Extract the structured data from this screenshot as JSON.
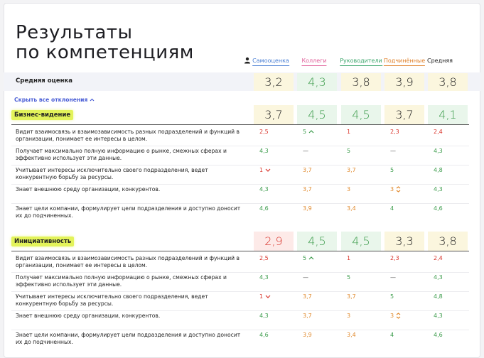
{
  "title": [
    "Результаты",
    "по компетенциям"
  ],
  "columns": [
    "Самооценка",
    "Коллеги",
    "Руководители",
    "Подчинённые",
    "Средняя"
  ],
  "average": {
    "label": "Средняя оценка",
    "values": [
      "3,2",
      "4,3",
      "3,8",
      "3,9",
      "3,8"
    ]
  },
  "toggle": "Скрыть все отклонения",
  "sections": [
    {
      "name": "Бизнес-видение",
      "scores": [
        "3,7",
        "4,5",
        "4,5",
        "3,7",
        "4,1"
      ],
      "rows": [
        {
          "text": "Видит взаимосвязь и взаимозависимость разных подразделений и функций в организации, понимает ее интересы в целом.",
          "values": [
            "2,5",
            "5",
            "1",
            "2,3",
            "2,4"
          ]
        },
        {
          "text": "Получает максимально полную информацию о рынке, смежных сферах и эффективно использует эти данные.",
          "values": [
            "4,3",
            "—",
            "5",
            "—",
            "4,3"
          ]
        },
        {
          "text": "Учитывает интересы исключительно своего подразделения, ведет конкурентную борьбу за ресурсы.",
          "values": [
            "1",
            "3,7",
            "3,7",
            "5",
            "4,8"
          ]
        },
        {
          "text": "Знает внешнюю среду организации, конкурентов.",
          "values": [
            "4,3",
            "3,7",
            "3",
            "3",
            "4,3"
          ]
        },
        {
          "text": "Знает цели компании, формулирует цели подразделения и доступно доносит их до подчиненных.",
          "values": [
            "4,6",
            "3,9",
            "3,4",
            "4",
            "4,6"
          ]
        }
      ]
    },
    {
      "name": "Инициативность",
      "scores": [
        "2,9",
        "4,5",
        "4,5",
        "3,3",
        "3,8"
      ],
      "rows": [
        {
          "text": "Видит взаимосвязь и взаимозависимость разных подразделений и функций в организации, понимает ее интересы в целом.",
          "values": [
            "2,5",
            "5",
            "1",
            "2,3",
            "2,4"
          ]
        },
        {
          "text": "Получает максимально полную информацию о рынке, смежных сферах и эффективно использует эти данные.",
          "values": [
            "4,3",
            "—",
            "5",
            "—",
            "4,3"
          ]
        },
        {
          "text": "Учитывает интересы исключительно своего подразделения, ведет конкурентную борьбу за ресурсы.",
          "values": [
            "1",
            "3,7",
            "3,7",
            "5",
            "4,8"
          ]
        },
        {
          "text": "Знает внешнюю среду организации, конкурентов.",
          "values": [
            "4,3",
            "3,7",
            "3",
            "3",
            "4,3"
          ]
        },
        {
          "text": "Знает цели компании, формулирует цели подразделения и доступно доносит их до подчиненных.",
          "values": [
            "4,6",
            "3,9",
            "3,4",
            "4",
            "4,6"
          ]
        }
      ]
    }
  ]
}
